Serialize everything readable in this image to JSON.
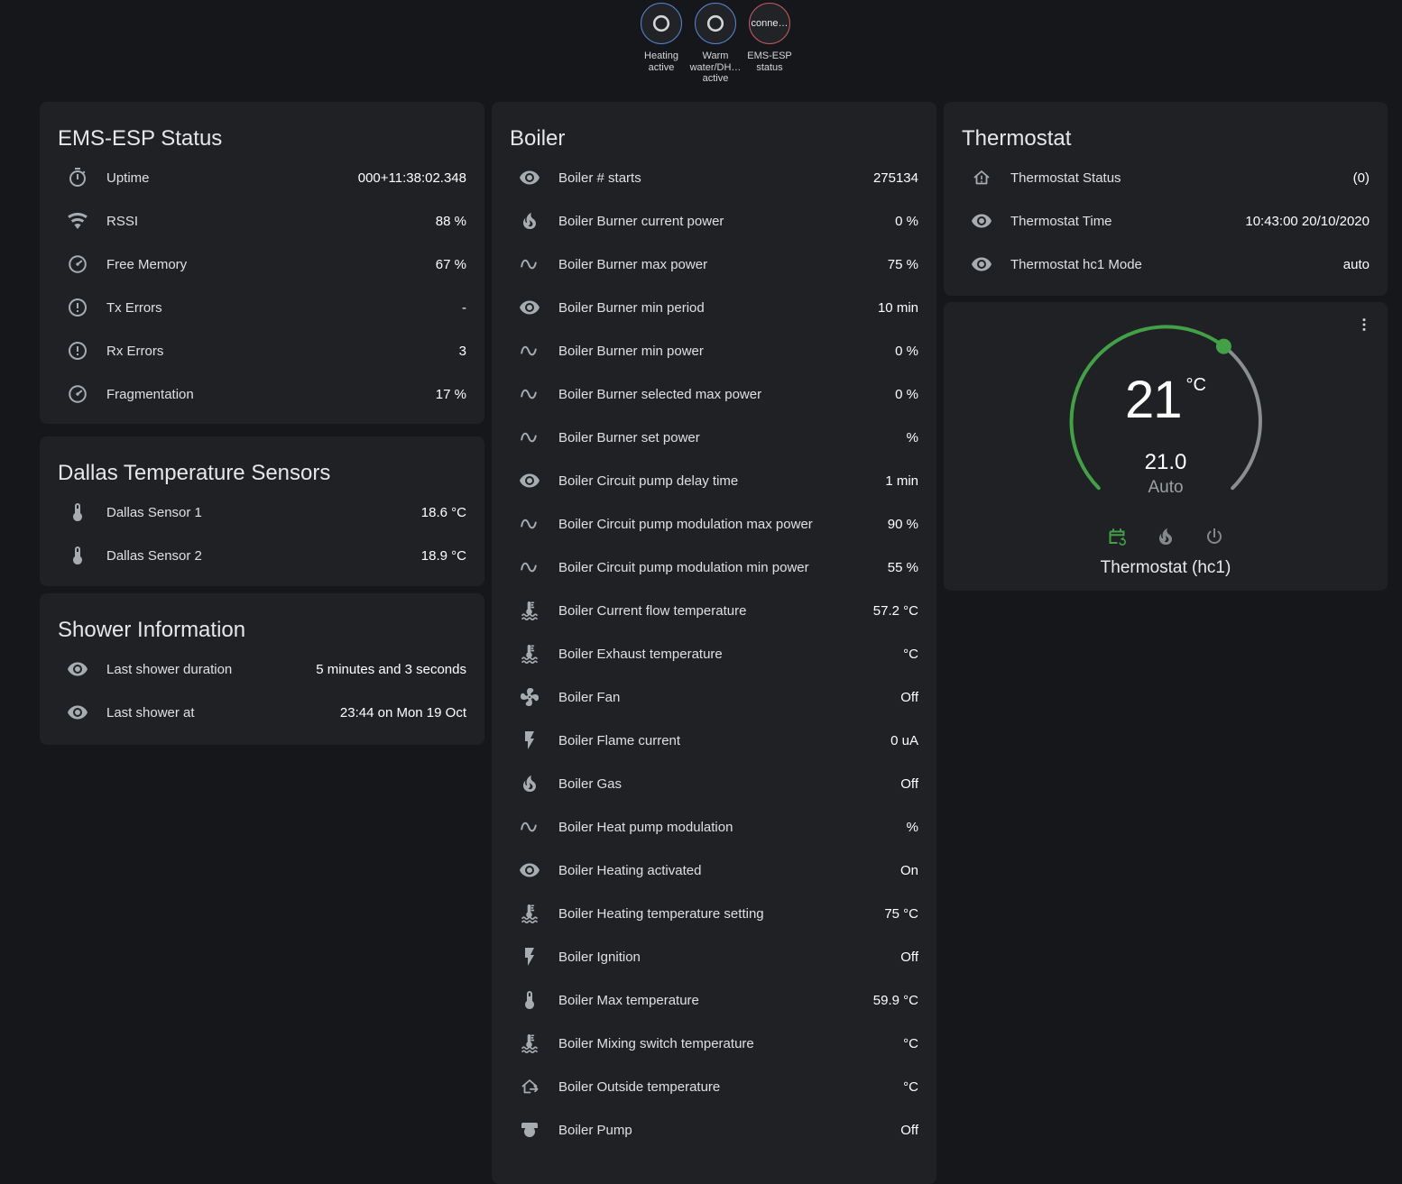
{
  "header": {
    "badges": [
      {
        "label": "Heating active",
        "icon": "radiobox-blank",
        "circle_style": "border-color:#5585cc"
      },
      {
        "label": "Warm water/DH… active",
        "icon": "radiobox-blank",
        "circle_style": "border-color:#5585cc"
      },
      {
        "label": "EMS-ESP status",
        "text": "conne…",
        "circle_style": "border-color:#c25a60"
      }
    ]
  },
  "panels": {
    "ems_esp_status": {
      "title": "EMS-ESP Status",
      "rows": [
        {
          "icon": "timer",
          "label": "Uptime",
          "value": "000+11:38:02.348"
        },
        {
          "icon": "wifi",
          "label": "RSSI",
          "value": "88 %"
        },
        {
          "icon": "gauge",
          "label": "Free Memory",
          "value": "67 %"
        },
        {
          "icon": "alert-circle",
          "label": "Tx Errors",
          "value": "-"
        },
        {
          "icon": "alert-circle",
          "label": "Rx Errors",
          "value": "3"
        },
        {
          "icon": "gauge",
          "label": "Fragmentation",
          "value": "17 %"
        }
      ]
    },
    "dallas": {
      "title": "Dallas Temperature Sensors",
      "rows": [
        {
          "icon": "thermometer",
          "label": "Dallas Sensor 1",
          "value": "18.6 °C"
        },
        {
          "icon": "thermometer",
          "label": "Dallas Sensor 2",
          "value": "18.9 °C"
        }
      ]
    },
    "shower": {
      "title": "Shower Information",
      "rows": [
        {
          "icon": "eye",
          "label": "Last shower duration",
          "value": "5 minutes and 3 seconds"
        },
        {
          "icon": "eye",
          "label": "Last shower at",
          "value": "23:44 on Mon 19 Oct"
        }
      ]
    },
    "boiler": {
      "title": "Boiler",
      "rows": [
        {
          "icon": "eye",
          "label": "Boiler # starts",
          "value": "275134"
        },
        {
          "icon": "fire",
          "label": "Boiler Burner current power",
          "value": "0 %"
        },
        {
          "icon": "sine-wave",
          "label": "Boiler Burner max power",
          "value": "75 %"
        },
        {
          "icon": "eye",
          "label": "Boiler Burner min period",
          "value": "10 min"
        },
        {
          "icon": "sine-wave",
          "label": "Boiler Burner min power",
          "value": "0 %"
        },
        {
          "icon": "sine-wave",
          "label": "Boiler Burner selected max power",
          "value": "0 %"
        },
        {
          "icon": "sine-wave",
          "label": "Boiler Burner set power",
          "value": "%"
        },
        {
          "icon": "eye",
          "label": "Boiler Circuit pump delay time",
          "value": "1 min"
        },
        {
          "icon": "sine-wave",
          "label": "Boiler Circuit pump modulation max power",
          "value": "90 %"
        },
        {
          "icon": "sine-wave",
          "label": "Boiler Circuit pump modulation min power",
          "value": "55 %"
        },
        {
          "icon": "coolant",
          "label": "Boiler Current flow temperature",
          "value": "57.2 °C"
        },
        {
          "icon": "coolant",
          "label": "Boiler Exhaust temperature",
          "value": "°C"
        },
        {
          "icon": "fan",
          "label": "Boiler Fan",
          "value": "Off"
        },
        {
          "icon": "flash",
          "label": "Boiler Flame current",
          "value": "0 uA"
        },
        {
          "icon": "fire",
          "label": "Boiler Gas",
          "value": "Off"
        },
        {
          "icon": "sine-wave",
          "label": "Boiler Heat pump modulation",
          "value": "%"
        },
        {
          "icon": "eye",
          "label": "Boiler Heating activated",
          "value": "On"
        },
        {
          "icon": "coolant",
          "label": "Boiler Heating temperature setting",
          "value": "75 °C"
        },
        {
          "icon": "flash",
          "label": "Boiler Ignition",
          "value": "Off"
        },
        {
          "icon": "thermometer",
          "label": "Boiler Max temperature",
          "value": "59.9 °C"
        },
        {
          "icon": "coolant",
          "label": "Boiler Mixing switch temperature",
          "value": "°C"
        },
        {
          "icon": "home-export",
          "label": "Boiler Outside temperature",
          "value": "°C"
        },
        {
          "icon": "pump",
          "label": "Boiler Pump",
          "value": "Off"
        }
      ]
    },
    "thermostat": {
      "title": "Thermostat",
      "rows": [
        {
          "icon": "home-alert",
          "label": "Thermostat Status",
          "value": "(0)"
        },
        {
          "icon": "eye",
          "label": "Thermostat Time",
          "value": "10:43:00 20/10/2020"
        },
        {
          "icon": "eye",
          "label": "Thermostat hc1 Mode",
          "value": "auto"
        }
      ]
    },
    "thermostat_card": {
      "temperature": "21",
      "unit": "°C",
      "setpoint": "21.0",
      "mode_label": "Auto",
      "name": "Thermostat (hc1)",
      "accent_color": "#43a047",
      "track_color": "#8b8e91",
      "menu_icon": "dots-vertical",
      "modes": [
        {
          "icon": "calendar-sync",
          "style": "color:#43a047"
        },
        {
          "icon": "fire",
          "style": "color:#85888b"
        },
        {
          "icon": "power",
          "style": "color:#85888b"
        }
      ]
    }
  }
}
